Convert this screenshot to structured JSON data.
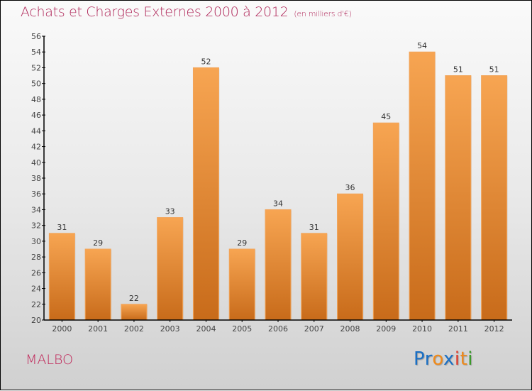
{
  "chart_data": {
    "type": "bar",
    "title": "Achats et Charges Externes 2000 à 2012",
    "subtitle": "(en milliers d'€)",
    "xlabel": "",
    "ylabel": "",
    "categories": [
      "2000",
      "2001",
      "2002",
      "2003",
      "2004",
      "2005",
      "2006",
      "2007",
      "2008",
      "2009",
      "2010",
      "2011",
      "2012"
    ],
    "values": [
      31,
      29,
      22,
      33,
      52,
      29,
      34,
      31,
      36,
      45,
      54,
      51,
      51
    ],
    "ylim": [
      20,
      56
    ],
    "yticks": [
      20,
      22,
      24,
      26,
      28,
      30,
      32,
      34,
      36,
      38,
      40,
      42,
      44,
      46,
      48,
      50,
      52,
      54,
      56
    ],
    "grid": false,
    "legend": "none",
    "bar_color_top": "#f7a552",
    "bar_color_bottom": "#c86b1a",
    "title_color": "#b0285a"
  },
  "footer": {
    "commune": "MALBO",
    "logo": {
      "letters": [
        {
          "ch": "P",
          "color": "#1a6fc4"
        },
        {
          "ch": "r",
          "color": "#1a6fc4"
        },
        {
          "ch": "o",
          "color": "#f08a1a"
        },
        {
          "ch": "x",
          "color": "#1a6fc4"
        },
        {
          "ch": "i",
          "color": "#e03a2a"
        },
        {
          "ch": "t",
          "color": "#f08a1a"
        },
        {
          "ch": "i",
          "color": "#3a9a2a"
        }
      ]
    }
  }
}
